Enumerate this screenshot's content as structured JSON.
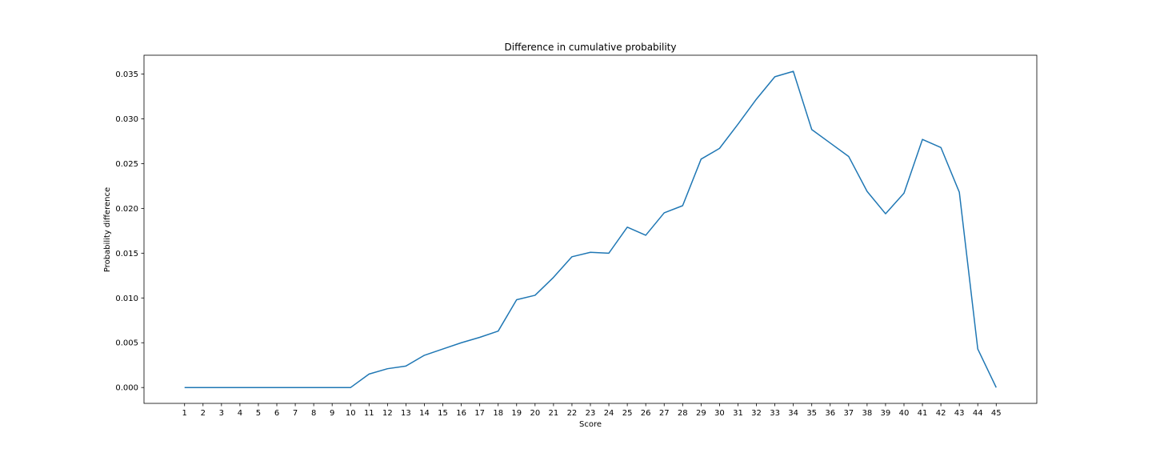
{
  "chart_data": {
    "type": "line",
    "title": "Difference in cumulative probability",
    "xlabel": "Score",
    "ylabel": "Probability difference",
    "x": [
      1,
      2,
      3,
      4,
      5,
      6,
      7,
      8,
      9,
      10,
      11,
      12,
      13,
      14,
      15,
      16,
      17,
      18,
      19,
      20,
      21,
      22,
      23,
      24,
      25,
      26,
      27,
      28,
      29,
      30,
      31,
      32,
      33,
      34,
      35,
      36,
      37,
      38,
      39,
      40,
      41,
      42,
      43,
      44,
      45
    ],
    "x_tick_labels": [
      "1",
      "2",
      "3",
      "4",
      "5",
      "6",
      "7",
      "8",
      "9",
      "10",
      "11",
      "12",
      "13",
      "14",
      "15",
      "16",
      "17",
      "18",
      "19",
      "20",
      "21",
      "22",
      "23",
      "24",
      "25",
      "26",
      "27",
      "28",
      "29",
      "30",
      "31",
      "32",
      "33",
      "34",
      "35",
      "36",
      "37",
      "38",
      "39",
      "40",
      "41",
      "42",
      "43",
      "44",
      "45"
    ],
    "y_ticks": [
      0.0,
      0.005,
      0.01,
      0.015,
      0.02,
      0.025,
      0.03,
      0.035
    ],
    "y_tick_labels": [
      "0.000",
      "0.005",
      "0.010",
      "0.015",
      "0.020",
      "0.025",
      "0.030",
      "0.035"
    ],
    "xlim": [
      -1.2,
      47.2
    ],
    "ylim": [
      -0.00177,
      0.0371
    ],
    "grid": false,
    "series": [
      {
        "color": "#1f77b4",
        "values": [
          0.0,
          0.0,
          0.0,
          0.0,
          0.0,
          0.0,
          0.0,
          0.0,
          0.0,
          0.0,
          0.0015,
          0.0021,
          0.0024,
          0.0036,
          0.0043,
          0.005,
          0.0056,
          0.0063,
          0.0098,
          0.0103,
          0.0123,
          0.0146,
          0.0151,
          0.015,
          0.0179,
          0.017,
          0.0195,
          0.0203,
          0.0255,
          0.0267,
          0.0294,
          0.0322,
          0.0347,
          0.0353,
          0.0288,
          0.0273,
          0.0258,
          0.0219,
          0.0194,
          0.0217,
          0.0277,
          0.0268,
          0.0218,
          0.0043,
          0.0
        ]
      }
    ]
  }
}
